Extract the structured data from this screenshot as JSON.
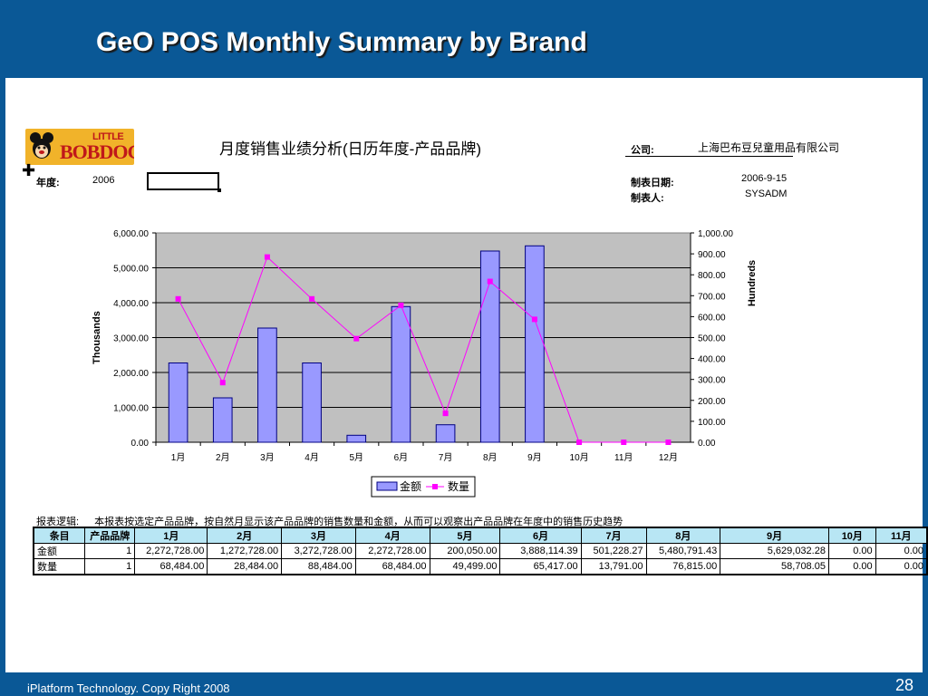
{
  "slide": {
    "title": "GeO POS Monthly Summary by Brand",
    "footer_text": "iPlatform Technology. Copy Right  2008",
    "page_number": "28"
  },
  "logo": {
    "line1": "LITTLE",
    "line2": "BOBDOG"
  },
  "report": {
    "title": "月度销售业绩分析(日历年度-产品品牌)",
    "year_label": "年度:",
    "year_value": "2006",
    "company_label": "公司:",
    "company_value": "上海巴布豆兒童用品有限公司",
    "date_label": "制表日期:",
    "date_value": "2006-9-15",
    "maker_label": "制表人:",
    "maker_value": "SYSADM",
    "desc_label": "报表逻辑:",
    "desc_text": "本报表按选定产品品牌，按自然月显示该产品品牌的销售数量和金额，从而可以观察出产品品牌在年度中的销售历史趋势"
  },
  "table": {
    "headers": [
      "条目",
      "产品品牌",
      "1月",
      "2月",
      "3月",
      "4月",
      "5月",
      "6月",
      "7月",
      "8月",
      "9月",
      "10月",
      "11月"
    ],
    "rows": [
      [
        "金额",
        "1",
        "2,272,728.00",
        "1,272,728.00",
        "3,272,728.00",
        "2,272,728.00",
        "200,050.00",
        "3,888,114.39",
        "501,228.27",
        "5,480,791.43",
        "5,629,032.28",
        "0.00",
        "0.00"
      ],
      [
        "数量",
        "1",
        "68,484.00",
        "28,484.00",
        "88,484.00",
        "68,484.00",
        "49,499.00",
        "65,417.00",
        "13,791.00",
        "76,815.00",
        "58,708.05",
        "0.00",
        "0.00"
      ]
    ]
  },
  "chart_data": {
    "type": "bar",
    "title": "",
    "categories": [
      "1月",
      "2月",
      "3月",
      "4月",
      "5月",
      "6月",
      "7月",
      "8月",
      "9月",
      "10月",
      "11月",
      "12月"
    ],
    "ylabel": "Thousands",
    "y2label": "Hundreds",
    "ylim": [
      0,
      6000
    ],
    "y2lim": [
      0,
      1000
    ],
    "y_ticks": [
      "0.00",
      "1,000.00",
      "2,000.00",
      "3,000.00",
      "4,000.00",
      "5,000.00",
      "6,000.00"
    ],
    "y2_ticks": [
      "0.00",
      "100.00",
      "200.00",
      "300.00",
      "400.00",
      "500.00",
      "600.00",
      "700.00",
      "800.00",
      "900.00",
      "1,000.00"
    ],
    "grid": true,
    "legend_position": "bottom",
    "series": [
      {
        "name": "金额",
        "type": "bar",
        "axis": "left",
        "color": "#9999ff",
        "values": [
          2272.728,
          1272.728,
          3272.728,
          2272.728,
          200.05,
          3888.114,
          501.228,
          5480.791,
          5629.032,
          0,
          0,
          0
        ]
      },
      {
        "name": "数量",
        "type": "line",
        "axis": "right",
        "color": "#ff00ff",
        "values": [
          684.84,
          284.84,
          884.84,
          684.84,
          494.99,
          654.17,
          137.91,
          768.15,
          587.08,
          0,
          0,
          0
        ]
      }
    ]
  },
  "colors": {
    "frame": "#0a5896",
    "plot_bg": "#c0c0c0",
    "table_header": "#b8e6f4"
  }
}
